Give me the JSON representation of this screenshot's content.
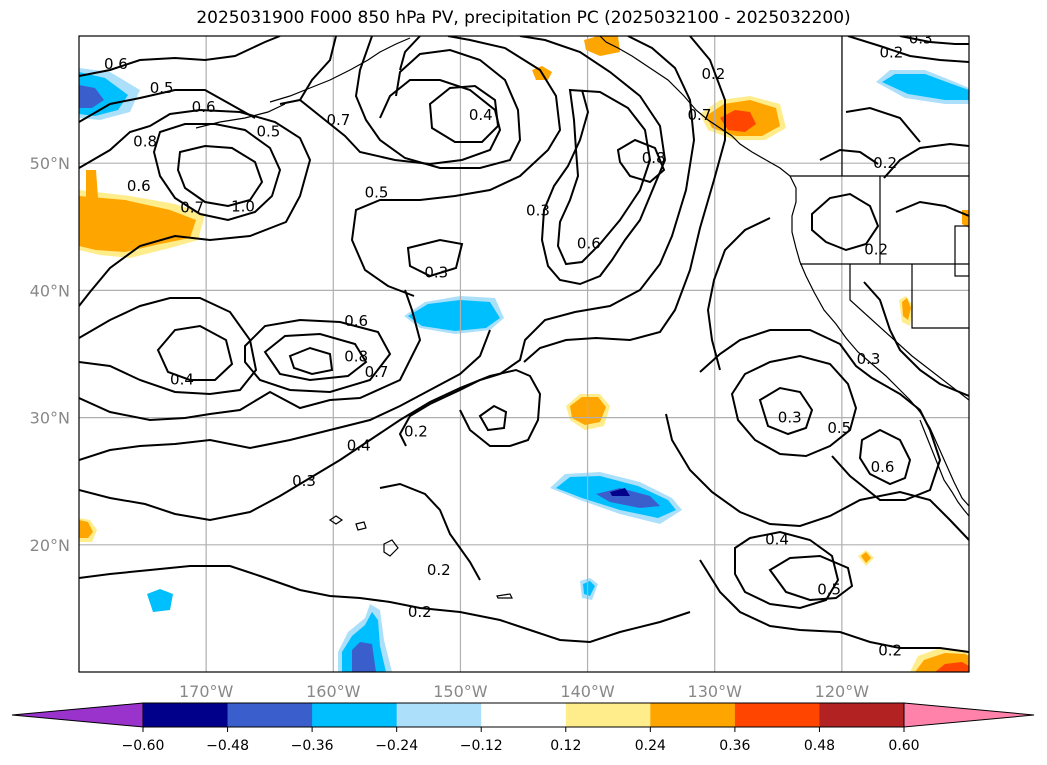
{
  "title": "2025031900 F000 850 hPa PV, precipitation PC (2025032100 - 2025032200)",
  "map": {
    "lon_range": [
      -180,
      -110
    ],
    "lat_range": [
      10,
      60
    ],
    "lon_ticks": [
      {
        "value": -170,
        "label": "170°W"
      },
      {
        "value": -160,
        "label": "160°W"
      },
      {
        "value": -150,
        "label": "150°W"
      },
      {
        "value": -140,
        "label": "140°W"
      },
      {
        "value": -130,
        "label": "130°W"
      },
      {
        "value": -120,
        "label": "120°W"
      }
    ],
    "lat_ticks": [
      {
        "value": 20,
        "label": "20°N"
      },
      {
        "value": 30,
        "label": "30°N"
      },
      {
        "value": 40,
        "label": "40°N"
      },
      {
        "value": 50,
        "label": "50°N"
      }
    ],
    "grid": true,
    "contour_color": "#000000",
    "contour_labels": [
      {
        "text": "0.6",
        "lon": -177.1,
        "lat": 57.8
      },
      {
        "text": "0.6",
        "lon": -170.2,
        "lat": 54.4
      },
      {
        "text": "0.8",
        "lon": -174.8,
        "lat": 51.7
      },
      {
        "text": "0.5",
        "lon": -165.1,
        "lat": 52.5
      },
      {
        "text": "0.7",
        "lon": -159.6,
        "lat": 53.4
      },
      {
        "text": "0.4",
        "lon": -148.4,
        "lat": 53.8
      },
      {
        "text": "0.5",
        "lon": -156.6,
        "lat": 47.7
      },
      {
        "text": "0.6",
        "lon": -175.3,
        "lat": 48.2
      },
      {
        "text": "0.7",
        "lon": -171.1,
        "lat": 46.5
      },
      {
        "text": "1.0",
        "lon": -167.1,
        "lat": 46.6
      },
      {
        "text": "0.3",
        "lon": -143.9,
        "lat": 46.3
      },
      {
        "text": "0.8",
        "lon": -134.8,
        "lat": 50.4
      },
      {
        "text": "0.6",
        "lon": -139.9,
        "lat": 43.7
      },
      {
        "text": "0.3",
        "lon": -151.9,
        "lat": 41.4
      },
      {
        "text": "0.6",
        "lon": -158.2,
        "lat": 37.6
      },
      {
        "text": "0.8",
        "lon": -158.2,
        "lat": 34.8
      },
      {
        "text": "0.7",
        "lon": -156.6,
        "lat": 33.6
      },
      {
        "text": "0.4",
        "lon": -171.9,
        "lat": 33.0
      },
      {
        "text": "0.4",
        "lon": -158.0,
        "lat": 27.8
      },
      {
        "text": "0.2",
        "lon": -153.5,
        "lat": 28.9
      },
      {
        "text": "0.3",
        "lon": -162.3,
        "lat": 25.0
      },
      {
        "text": "0.2",
        "lon": -151.7,
        "lat": 18.0
      },
      {
        "text": "0.2",
        "lon": -153.2,
        "lat": 14.7
      },
      {
        "text": "0.3",
        "lon": -124.1,
        "lat": 30.0
      },
      {
        "text": "0.5",
        "lon": -120.2,
        "lat": 29.2
      },
      {
        "text": "0.6",
        "lon": -116.8,
        "lat": 26.1
      },
      {
        "text": "0.4",
        "lon": -125.1,
        "lat": 20.4
      },
      {
        "text": "0.5",
        "lon": -121.0,
        "lat": 16.5
      },
      {
        "text": "0.2",
        "lon": -116.2,
        "lat": 11.7
      },
      {
        "text": "0.3",
        "lon": -117.9,
        "lat": 34.6
      },
      {
        "text": "0.2",
        "lon": -130.1,
        "lat": 57.0
      },
      {
        "text": "0.2",
        "lon": -116.1,
        "lat": 58.7
      },
      {
        "text": "0.2",
        "lon": -116.6,
        "lat": 50.0
      },
      {
        "text": "0.2",
        "lon": -117.3,
        "lat": 43.2
      },
      {
        "text": "0.3",
        "lon": -113.8,
        "lat": 59.8
      },
      {
        "text": "0.7",
        "lon": -131.2,
        "lat": 53.8
      },
      {
        "text": "0.5",
        "lon": -173.5,
        "lat": 55.9
      }
    ]
  },
  "colorbar": {
    "bounds": [
      -0.72,
      -0.6,
      -0.48,
      -0.36,
      -0.24,
      -0.12,
      0.12,
      0.24,
      0.36,
      0.48,
      0.6,
      0.72
    ],
    "colors": [
      "#9933cc",
      "#00008b",
      "#3a5fcd",
      "#00bfff",
      "#ace0fa",
      "#ffffff",
      "#ffec8b",
      "#ffa500",
      "#ff4500",
      "#b22222",
      "#ff82ab"
    ],
    "under_color": "#9933cc",
    "over_color": "#ff82ab",
    "ticks": [
      "−0.60",
      "−0.48",
      "−0.36",
      "−0.24",
      "−0.12",
      "0.12",
      "0.24",
      "0.36",
      "0.48",
      "0.60"
    ]
  }
}
